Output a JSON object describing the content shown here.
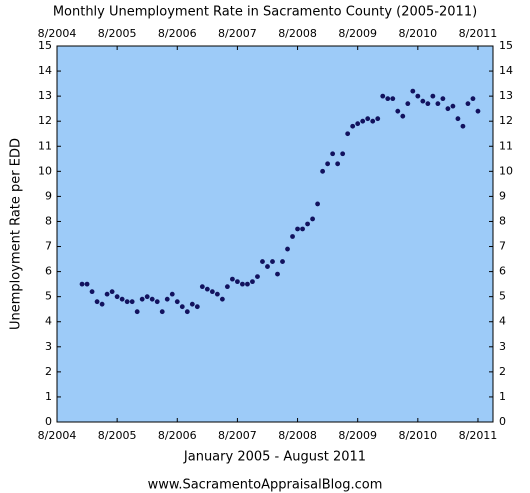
{
  "chart_data": {
    "type": "scatter",
    "title": "Monthly Unemployment Rate in Sacramento County (2005-2011)",
    "xlabel": "January 2005 - August 2011",
    "ylabel": "Unemployment Rate per EDD",
    "source": "www.SacramentoAppraisalBlog.com",
    "background": "#9dcbf8",
    "series": [
      {
        "color": "#12125e",
        "x": [
          "1/2005",
          "2/2005",
          "3/2005",
          "4/2005",
          "5/2005",
          "6/2005",
          "7/2005",
          "8/2005",
          "9/2005",
          "10/2005",
          "11/2005",
          "12/2005",
          "1/2006",
          "2/2006",
          "3/2006",
          "4/2006",
          "5/2006",
          "6/2006",
          "7/2006",
          "8/2006",
          "9/2006",
          "10/2006",
          "11/2006",
          "12/2006",
          "1/2007",
          "2/2007",
          "3/2007",
          "4/2007",
          "5/2007",
          "6/2007",
          "7/2007",
          "8/2007",
          "9/2007",
          "10/2007",
          "11/2007",
          "12/2007",
          "1/2008",
          "2/2008",
          "3/2008",
          "4/2008",
          "5/2008",
          "6/2008",
          "7/2008",
          "8/2008",
          "9/2008",
          "10/2008",
          "11/2008",
          "12/2008",
          "1/2009",
          "2/2009",
          "3/2009",
          "4/2009",
          "5/2009",
          "6/2009",
          "7/2009",
          "8/2009",
          "9/2009",
          "10/2009",
          "11/2009",
          "12/2009",
          "1/2010",
          "2/2010",
          "3/2010",
          "4/2010",
          "5/2010",
          "6/2010",
          "7/2010",
          "8/2010",
          "9/2010",
          "10/2010",
          "11/2010",
          "12/2010",
          "1/2011",
          "2/2011",
          "3/2011",
          "4/2011",
          "5/2011",
          "6/2011",
          "7/2011",
          "8/2011"
        ],
        "values": [
          5.5,
          5.5,
          5.2,
          4.8,
          4.7,
          5.1,
          5.2,
          5.0,
          4.9,
          4.8,
          4.8,
          4.4,
          4.9,
          5.0,
          4.9,
          4.8,
          4.4,
          4.9,
          5.1,
          4.8,
          4.6,
          4.4,
          4.7,
          4.6,
          5.4,
          5.3,
          5.2,
          5.1,
          4.9,
          5.4,
          5.7,
          5.6,
          5.5,
          5.5,
          5.6,
          5.8,
          6.4,
          6.2,
          6.4,
          5.9,
          6.4,
          6.9,
          7.4,
          7.7,
          7.7,
          7.9,
          8.1,
          8.7,
          10.0,
          10.3,
          10.7,
          10.3,
          10.7,
          11.5,
          11.8,
          11.9,
          12.0,
          12.1,
          12.0,
          12.1,
          13.0,
          12.9,
          12.9,
          12.4,
          12.2,
          12.7,
          13.2,
          13.0,
          12.8,
          12.7,
          13.0,
          12.7,
          12.9,
          12.5,
          12.6,
          12.1,
          11.8,
          12.7,
          12.9,
          12.4
        ]
      }
    ],
    "xlim": [
      "8/2004",
      "11/2011"
    ],
    "xticks": [
      "8/2004",
      "8/2005",
      "8/2006",
      "8/2007",
      "8/2008",
      "8/2009",
      "8/2010",
      "8/2011"
    ],
    "ylim": [
      0,
      15
    ],
    "yticks": [
      0,
      1,
      2,
      3,
      4,
      5,
      6,
      7,
      8,
      9,
      10,
      11,
      12,
      13,
      14,
      15
    ]
  }
}
